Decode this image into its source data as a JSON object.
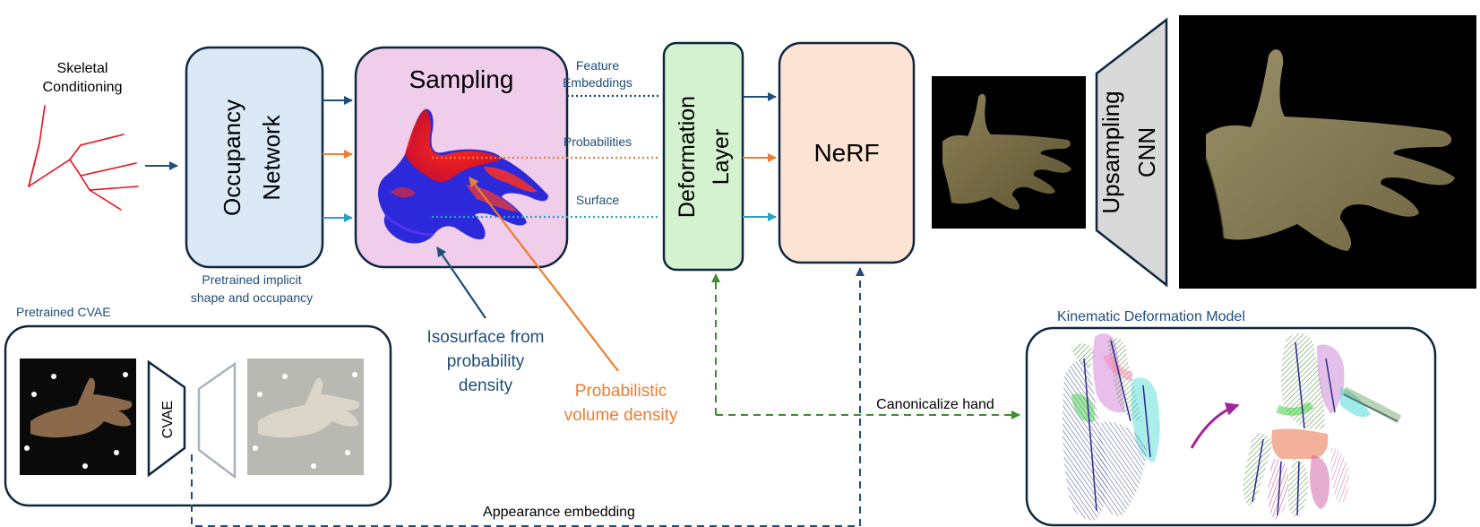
{
  "skeletal": {
    "line1": "Skeletal",
    "line2": "Conditioning"
  },
  "occupancy": {
    "line1": "Occupancy",
    "line2": "Network",
    "caption1": "Pretrained implicit",
    "caption2": "shape and occupancy"
  },
  "sampling": {
    "title": "Sampling"
  },
  "connectors": {
    "feature1": "Feature",
    "feature2": "Embeddings",
    "probabilities": "Probabilities",
    "surface": "Surface"
  },
  "deformation": {
    "line1": "Deformation",
    "line2": "Layer"
  },
  "nerf": {
    "title": "NeRF"
  },
  "upsampling": {
    "line1": "Upsampling",
    "line2": "CNN"
  },
  "cvae": {
    "caption": "Pretrained CVAE",
    "encoder": "CVAE"
  },
  "annotations": {
    "iso1": "Isosurface from",
    "iso2": "probability",
    "iso3": "density",
    "prob1": "Probabilistic",
    "prob2": "volume density",
    "canonicalize": "Canonicalize hand",
    "appearance": "Appearance embedding"
  },
  "kinematic": {
    "title": "Kinematic Deformation Model"
  },
  "colors": {
    "navy": "#1f4e79",
    "orange": "#ed7d31",
    "teal": "#2aa0c9",
    "green": "#3a8f2e",
    "purple": "#a0259a",
    "occupancy_fill": "#dbe9f6",
    "sampling_fill": "#efcdeb",
    "deformation_fill": "#d4f2d0",
    "nerf_fill": "#fde3d3",
    "upsampling_fill": "#d9d9d9"
  }
}
